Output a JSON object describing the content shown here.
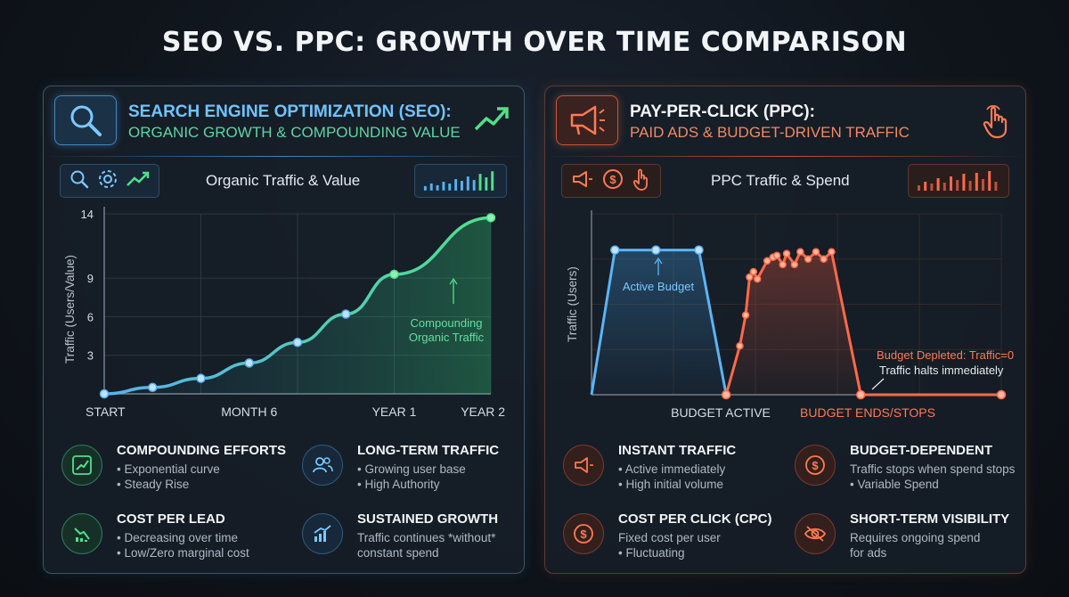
{
  "title": "SEO VS. PPC: GROWTH OVER TIME COMPARISON",
  "seo": {
    "title": "SEARCH ENGINE OPTIMIZATION (SEO):",
    "subtitle": "ORGANIC GROWTH & COMPOUNDING VALUE",
    "chart_title": "Organic Traffic & Value",
    "features": [
      {
        "title": "COMPOUNDING EFFORTS",
        "lines": [
          "• Exponential curve",
          "• Steady Rise"
        ]
      },
      {
        "title": "LONG-TERM TRAFFIC",
        "lines": [
          "• Growing user base",
          "• High Authority"
        ]
      },
      {
        "title": "COST PER LEAD",
        "lines": [
          "• Decreasing over time",
          "• Low/Zero marginal cost"
        ]
      },
      {
        "title": "SUSTAINED GROWTH",
        "lines": [
          "Traffic continues *without*",
          "constant spend"
        ]
      }
    ]
  },
  "ppc": {
    "title": "PAY-PER-CLICK (PPC):",
    "subtitle": "PAID ADS & BUDGET-DRIVEN TRAFFIC",
    "chart_title": "PPC Traffic & Spend",
    "features": [
      {
        "title": "INSTANT TRAFFIC",
        "lines": [
          "• Active immediately",
          "• High initial volume"
        ]
      },
      {
        "title": "BUDGET-DEPENDENT",
        "lines": [
          "Traffic stops when spend stops",
          "• Variable Spend"
        ]
      },
      {
        "title": "COST PER CLICK (CPC)",
        "lines": [
          "Fixed cost per user",
          "• Fluctuating"
        ]
      },
      {
        "title": "SHORT-TERM VISIBILITY",
        "lines": [
          "Requires ongoing spend",
          "for ads"
        ]
      }
    ]
  },
  "colors": {
    "seo_line": "#56b2f0",
    "seo_line_end": "#4fe08a",
    "ppc_blue": "#5ab4f5",
    "ppc_red": "#ff6a48"
  },
  "chart_data": [
    {
      "type": "line",
      "title": "Organic Traffic & Value",
      "ylabel": "Traffic (Users/Value)",
      "xlabel": "",
      "x_ticks": [
        "START",
        "MONTH 6",
        "YEAR 1",
        "YEAR 2"
      ],
      "y_ticks": [
        "3",
        "6",
        "9",
        "14"
      ],
      "x": [
        0,
        0.5,
        1,
        1.5,
        2,
        2.5,
        3,
        4
      ],
      "y": [
        0,
        0.5,
        1.2,
        2.4,
        4,
        6.2,
        9.3,
        13.7
      ],
      "annotation": "Compounding Organic Traffic",
      "grid": true
    },
    {
      "type": "line",
      "title": "PPC Traffic & Spend",
      "ylabel": "Traffic (Users)",
      "x_ticks": [
        "BUDGET ACTIVE",
        "BUDGET ENDS/STOPS"
      ],
      "annotations": [
        "Active Budget",
        "Budget Depleted: Traffic=0",
        "Traffic halts immediately"
      ],
      "grid": true,
      "series": [
        {
          "color": "blue",
          "x": [
            0,
            1.2,
            3.3,
            5.5,
            6.9
          ],
          "y": [
            0,
            8,
            8,
            8,
            0
          ]
        },
        {
          "color": "red",
          "x": [
            6.9,
            7.6,
            7.9,
            8.1,
            8.3,
            8.5,
            9.0,
            9.3,
            9.5,
            9.8,
            10.0,
            10.4,
            10.7,
            11.1,
            11.5,
            11.9,
            12.3,
            13.8,
            21.0
          ],
          "y": [
            0,
            2.7,
            4.4,
            6.5,
            6.8,
            6.4,
            7.4,
            7.6,
            7.7,
            7.2,
            7.8,
            7.2,
            7.9,
            7.5,
            7.9,
            7.5,
            7.9,
            0,
            0
          ]
        }
      ]
    }
  ]
}
